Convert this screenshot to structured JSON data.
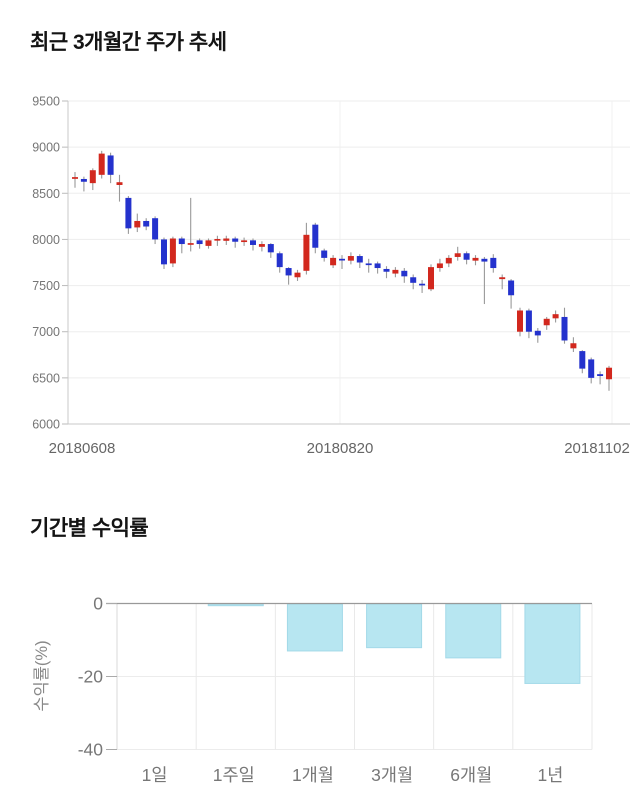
{
  "chart_data": [
    {
      "type": "candlestick",
      "title": "최근 3개월간 주가 추세",
      "x_tick_labels": [
        "20180608",
        "20180820",
        "20181102"
      ],
      "y_ticks": [
        9500,
        9000,
        8500,
        8000,
        7500,
        7000,
        6500,
        6000
      ],
      "ylim": [
        6000,
        9500
      ],
      "grid": "horizontal",
      "legend": "none",
      "up_color": "#d2281e",
      "down_color": "#2432cd",
      "wick_color": "#999999",
      "ohlc_format": [
        "open",
        "close",
        "low",
        "high"
      ],
      "candles": [
        [
          8660,
          8675,
          8560,
          8730
        ],
        [
          8655,
          8625,
          8520,
          8680
        ],
        [
          8610,
          8750,
          8535,
          8770
        ],
        [
          8700,
          8930,
          8660,
          8960
        ],
        [
          8910,
          8700,
          8610,
          8940
        ],
        [
          8590,
          8620,
          8410,
          8700
        ],
        [
          8450,
          8120,
          8060,
          8470
        ],
        [
          8130,
          8200,
          8080,
          8280
        ],
        [
          8200,
          8140,
          8100,
          8230
        ],
        [
          8230,
          8000,
          7950,
          8250
        ],
        [
          8000,
          7730,
          7680,
          8020
        ],
        [
          7740,
          8010,
          7700,
          8030
        ],
        [
          8010,
          7950,
          7850,
          8030
        ],
        [
          7950,
          7960,
          7870,
          8450
        ],
        [
          7990,
          7950,
          7900,
          8010
        ],
        [
          7930,
          7990,
          7900,
          8010
        ],
        [
          7990,
          8005,
          7930,
          8040
        ],
        [
          7985,
          8010,
          7940,
          8040
        ],
        [
          8010,
          7975,
          7910,
          8030
        ],
        [
          7975,
          7990,
          7930,
          8020
        ],
        [
          7990,
          7940,
          7880,
          8010
        ],
        [
          7920,
          7950,
          7870,
          7980
        ],
        [
          7950,
          7860,
          7800,
          7960
        ],
        [
          7850,
          7700,
          7640,
          7870
        ],
        [
          7690,
          7610,
          7510,
          7700
        ],
        [
          7590,
          7640,
          7550,
          7670
        ],
        [
          7660,
          8050,
          7620,
          8180
        ],
        [
          8160,
          7910,
          7850,
          8180
        ],
        [
          7880,
          7800,
          7760,
          7900
        ],
        [
          7720,
          7800,
          7690,
          7830
        ],
        [
          7790,
          7780,
          7680,
          7830
        ],
        [
          7770,
          7820,
          7730,
          7860
        ],
        [
          7820,
          7750,
          7690,
          7840
        ],
        [
          7740,
          7730,
          7640,
          7790
        ],
        [
          7740,
          7690,
          7630,
          7760
        ],
        [
          7680,
          7650,
          7580,
          7710
        ],
        [
          7630,
          7670,
          7590,
          7700
        ],
        [
          7660,
          7600,
          7530,
          7690
        ],
        [
          7590,
          7530,
          7460,
          7620
        ],
        [
          7520,
          7510,
          7420,
          7560
        ],
        [
          7460,
          7700,
          7440,
          7730
        ],
        [
          7690,
          7740,
          7650,
          7790
        ],
        [
          7740,
          7800,
          7700,
          7830
        ],
        [
          7810,
          7850,
          7770,
          7920
        ],
        [
          7850,
          7780,
          7730,
          7870
        ],
        [
          7770,
          7800,
          7720,
          7830
        ],
        [
          7790,
          7760,
          7300,
          7810
        ],
        [
          7800,
          7690,
          7640,
          7840
        ],
        [
          7570,
          7590,
          7460,
          7620
        ],
        [
          7555,
          7395,
          7250,
          7570
        ],
        [
          7000,
          7230,
          6950,
          7260
        ],
        [
          7230,
          7000,
          6930,
          7250
        ],
        [
          7010,
          6960,
          6880,
          7040
        ],
        [
          7070,
          7140,
          7020,
          7160
        ],
        [
          7145,
          7190,
          7100,
          7230
        ],
        [
          7160,
          6905,
          6870,
          7260
        ],
        [
          6820,
          6875,
          6780,
          6940
        ],
        [
          6790,
          6600,
          6550,
          6800
        ],
        [
          6700,
          6500,
          6440,
          6720
        ],
        [
          6540,
          6520,
          6430,
          6570
        ],
        [
          6485,
          6610,
          6360,
          6630
        ]
      ]
    },
    {
      "type": "bar",
      "title": "기간별 수익률",
      "ylabel": "수익률(%)",
      "categories": [
        "1일",
        "1주일",
        "1개월",
        "3개월",
        "6개월",
        "1년"
      ],
      "values": [
        0,
        -0.6,
        -13.0,
        -12.1,
        -14.9,
        -21.9
      ],
      "y_ticks": [
        0,
        -20,
        -40
      ],
      "ylim": [
        -40,
        0
      ],
      "grid": "both-light",
      "legend": "none",
      "bar_color": "#b7e6f1",
      "bar_border_color": "#a3d9e8"
    }
  ]
}
